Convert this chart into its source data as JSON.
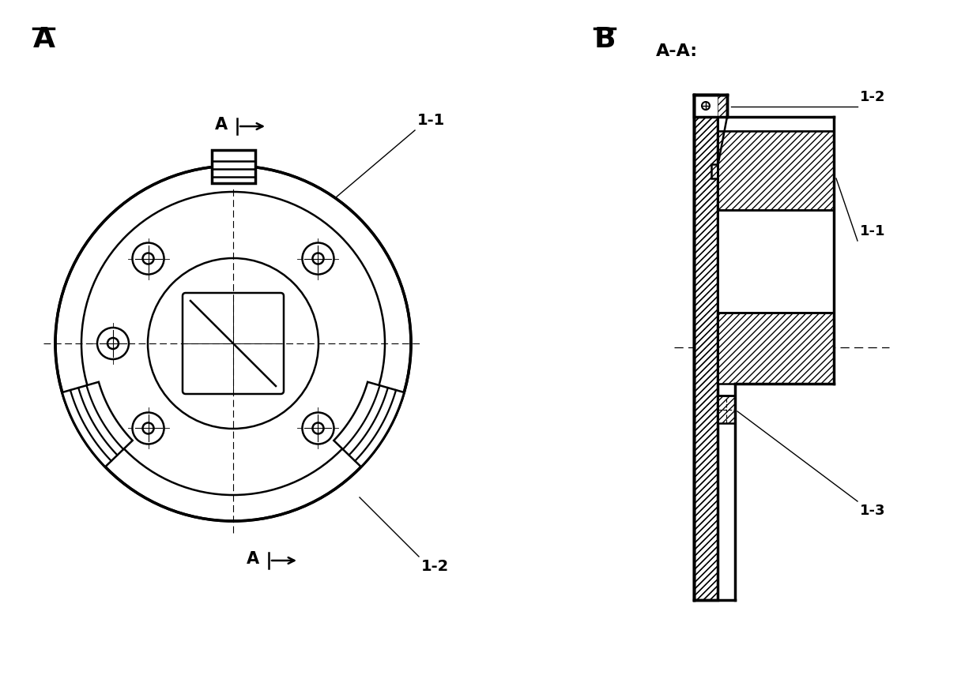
{
  "bg_color": "#ffffff",
  "line_color": "#000000",
  "label_A": "A",
  "label_B": "B",
  "label_AA": "A-A:",
  "label_11": "1-1",
  "label_12": "1-2",
  "label_13": "1-3",
  "fig_width": 12.4,
  "fig_height": 8.55
}
